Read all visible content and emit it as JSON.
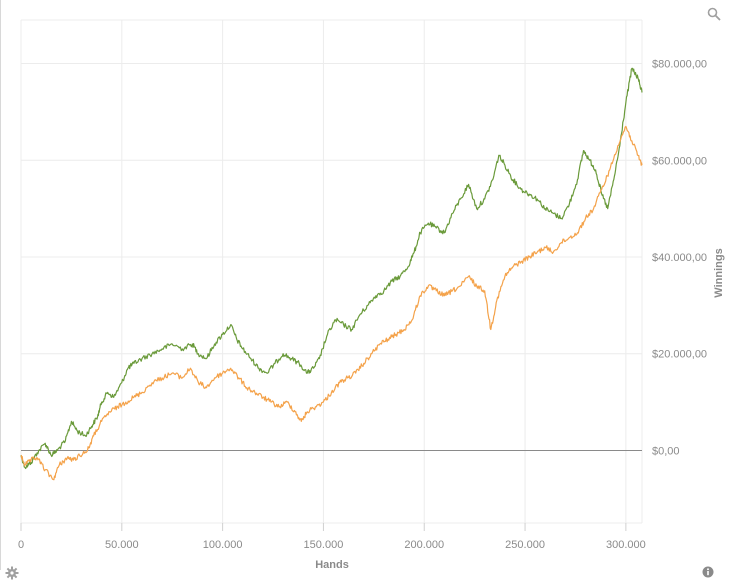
{
  "chart_data": {
    "type": "line",
    "title": "",
    "xlabel": "Hands",
    "ylabel": "Winnings",
    "xlim": [
      0,
      308000
    ],
    "ylim": [
      -15000,
      89000
    ],
    "x_ticks": [
      0,
      50000,
      100000,
      150000,
      200000,
      250000,
      300000
    ],
    "x_tick_labels": [
      "0",
      "50.000",
      "100.000",
      "150.000",
      "200.000",
      "250.000",
      "300.000"
    ],
    "y_ticks": [
      0,
      20000,
      40000,
      60000,
      80000
    ],
    "y_tick_labels": [
      "$0,00",
      "$20.000,00",
      "$40.000,00",
      "$60.000,00",
      "$80.000,00"
    ],
    "grid": true,
    "legend": "none",
    "series": [
      {
        "color": "#6a9a3a",
        "x": [
          0,
          2000,
          5000,
          8000,
          12000,
          15000,
          18000,
          22000,
          25000,
          28000,
          32000,
          35000,
          38000,
          40000,
          43000,
          46000,
          50000,
          53000,
          56000,
          60000,
          65000,
          70000,
          75000,
          80000,
          85000,
          88000,
          92000,
          96000,
          100000,
          104000,
          107000,
          110000,
          114000,
          118000,
          122000,
          126000,
          130000,
          134000,
          138000,
          142000,
          145000,
          148000,
          152000,
          156000,
          160000,
          164000,
          168000,
          172000,
          176000,
          180000,
          184000,
          188000,
          192000,
          195000,
          198000,
          202000,
          206000,
          210000,
          214000,
          218000,
          222000,
          226000,
          230000,
          234000,
          237000,
          240000,
          244000,
          248000,
          252000,
          256000,
          260000,
          264000,
          268000,
          272000,
          276000,
          279000,
          282000,
          285000,
          288000,
          291000,
          294000,
          297000,
          300000,
          303000,
          306000,
          308000
        ],
        "y": [
          -1000,
          -3500,
          -2500,
          -500,
          1500,
          -1000,
          0,
          2000,
          6000,
          4000,
          3000,
          5000,
          7000,
          10000,
          12000,
          11000,
          14000,
          17000,
          18000,
          19000,
          20000,
          21000,
          22000,
          21000,
          22000,
          20000,
          19000,
          22000,
          24000,
          26000,
          23000,
          21000,
          19000,
          17000,
          16000,
          18000,
          20000,
          19000,
          18000,
          16000,
          17000,
          19000,
          24000,
          27000,
          26000,
          25000,
          28000,
          30000,
          32000,
          33000,
          35000,
          36000,
          38000,
          41000,
          45000,
          47000,
          46000,
          45000,
          49000,
          52000,
          55000,
          50000,
          52000,
          56000,
          61000,
          59000,
          56000,
          54000,
          53000,
          52000,
          50000,
          49000,
          48000,
          51000,
          56000,
          62000,
          60000,
          58000,
          53000,
          50000,
          56000,
          63000,
          72000,
          79000,
          77000,
          74000
        ]
      },
      {
        "color": "#f4a24a",
        "x": [
          0,
          2000,
          5000,
          8000,
          12000,
          16000,
          19000,
          23000,
          26000,
          29000,
          33000,
          36000,
          40000,
          44000,
          48000,
          52000,
          56000,
          60000,
          65000,
          70000,
          75000,
          80000,
          84000,
          88000,
          92000,
          96000,
          100000,
          104000,
          108000,
          112000,
          116000,
          120000,
          124000,
          128000,
          132000,
          136000,
          139000,
          142000,
          146000,
          150000,
          154000,
          158000,
          162000,
          166000,
          170000,
          174000,
          178000,
          182000,
          186000,
          190000,
          194000,
          198000,
          202000,
          206000,
          210000,
          214000,
          218000,
          222000,
          226000,
          230000,
          233000,
          236000,
          240000,
          244000,
          248000,
          252000,
          256000,
          260000,
          264000,
          268000,
          272000,
          276000,
          280000,
          284000,
          288000,
          292000,
          296000,
          300000,
          303000,
          306000,
          308000
        ],
        "y": [
          -1000,
          -3000,
          -2000,
          -1500,
          -4000,
          -6000,
          -3000,
          -1500,
          -2000,
          -1000,
          0,
          3000,
          6000,
          8000,
          9000,
          10000,
          11000,
          12000,
          14000,
          15000,
          16000,
          15000,
          17000,
          14000,
          13000,
          15000,
          16000,
          17000,
          15000,
          13000,
          12000,
          11000,
          10000,
          9000,
          10000,
          8000,
          6000,
          8000,
          9000,
          10000,
          12000,
          14000,
          15000,
          16000,
          18000,
          20000,
          22000,
          23000,
          24000,
          25000,
          27000,
          32000,
          34000,
          33000,
          32000,
          33000,
          34000,
          36000,
          34000,
          33000,
          25000,
          31000,
          36000,
          38000,
          39000,
          40000,
          41000,
          42000,
          41000,
          43000,
          44000,
          45000,
          48000,
          50000,
          54000,
          58000,
          63000,
          67000,
          64000,
          61000,
          59000
        ]
      }
    ]
  }
}
